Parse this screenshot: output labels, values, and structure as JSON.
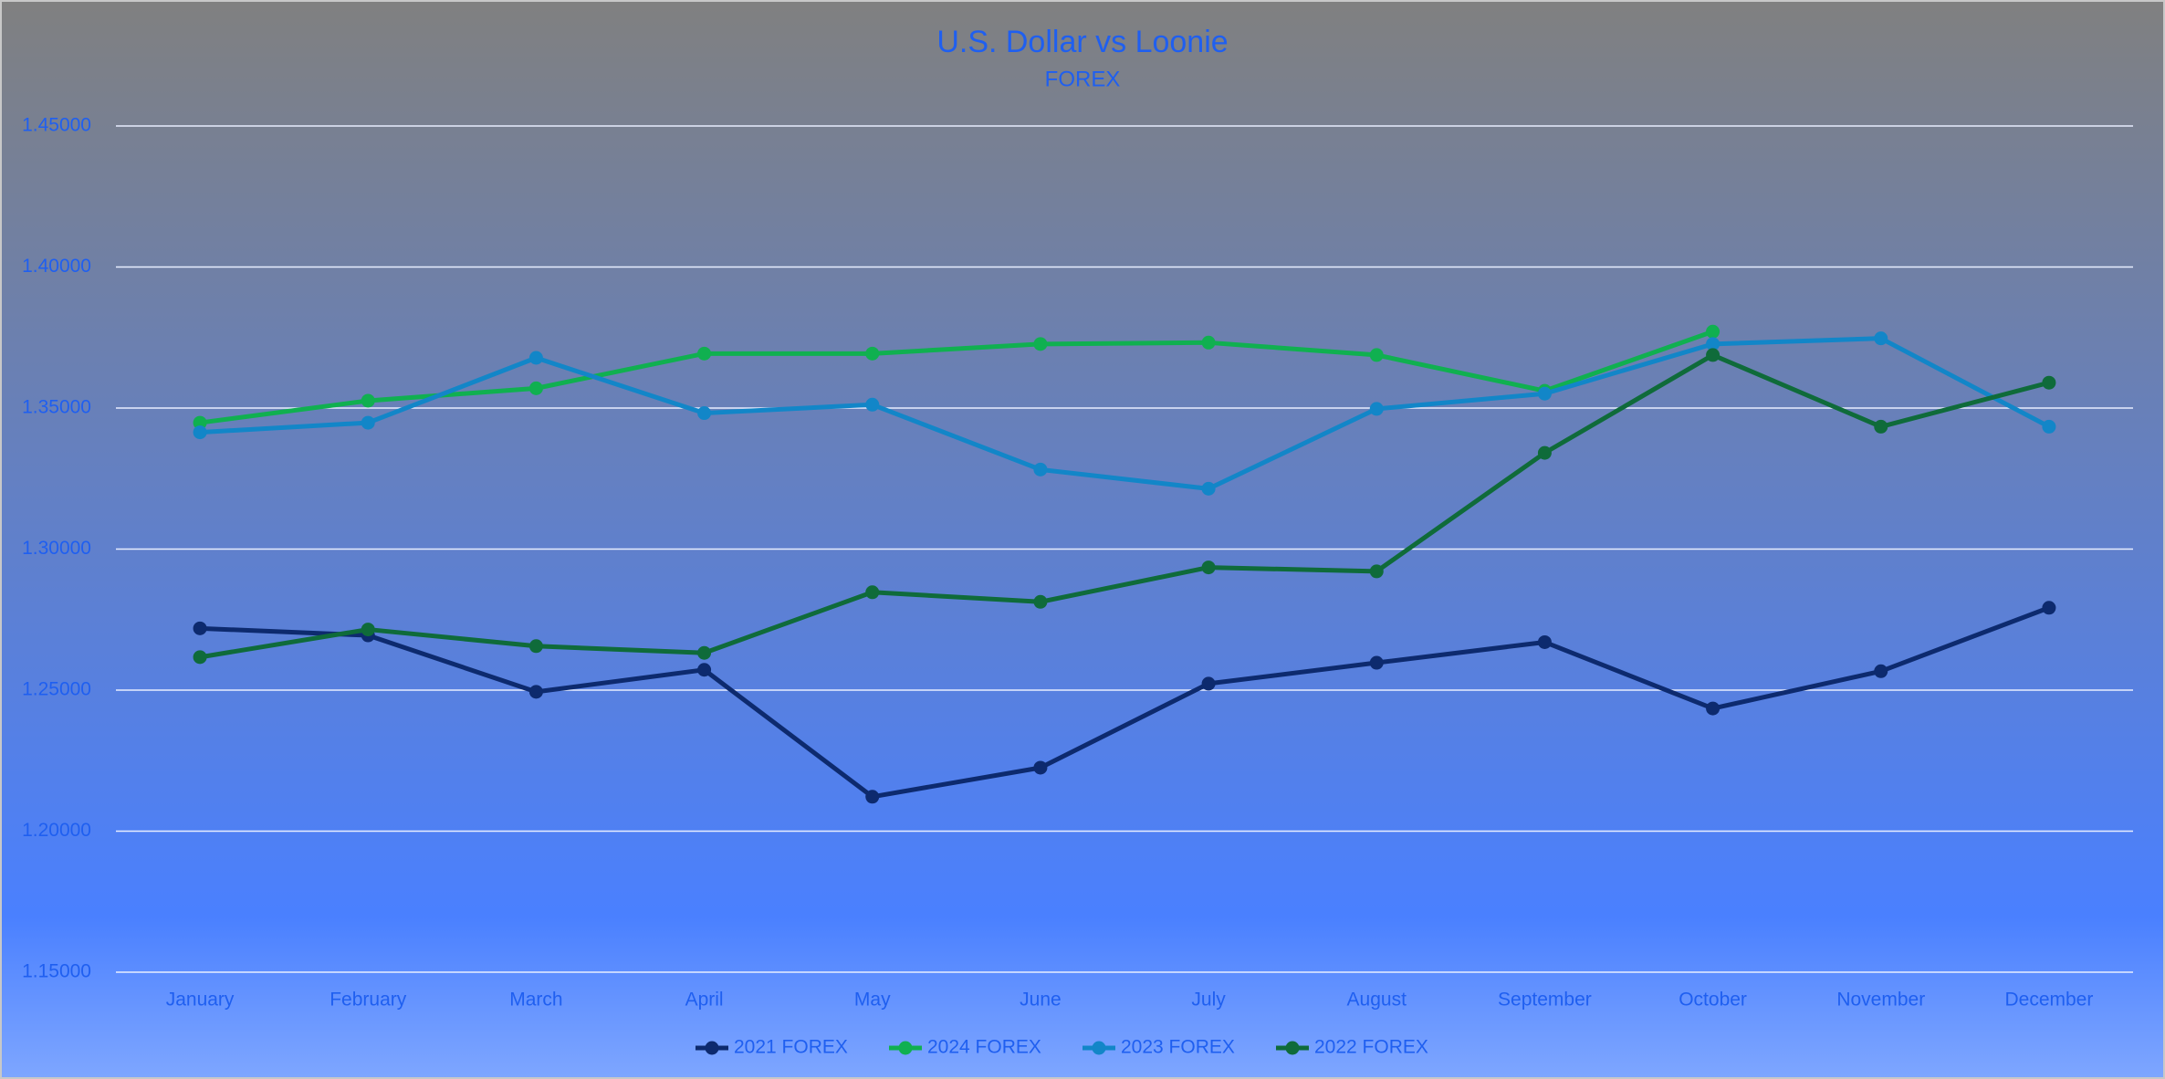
{
  "chart_data": {
    "type": "line",
    "title": "U.S. Dollar vs Loonie",
    "subtitle": "FOREX",
    "categories": [
      "January",
      "February",
      "March",
      "April",
      "May",
      "June",
      "July",
      "August",
      "September",
      "October",
      "November",
      "December"
    ],
    "series": [
      {
        "name": "2021 FOREX",
        "color": "#0d2a6e",
        "values": [
          1.2719,
          1.2694,
          1.2494,
          1.2572,
          1.2122,
          1.2225,
          1.2523,
          1.2597,
          1.267,
          1.2435,
          1.2567,
          1.2792
        ]
      },
      {
        "name": "2024 FOREX",
        "color": "#10b050",
        "values": [
          1.3448,
          1.3526,
          1.357,
          1.3693,
          1.3693,
          1.3727,
          1.3732,
          1.3688,
          1.3561,
          1.3771,
          null,
          null
        ]
      },
      {
        "name": "2023 FOREX",
        "color": "#1286c8",
        "values": [
          1.3414,
          1.3448,
          1.3678,
          1.3482,
          1.3512,
          1.3282,
          1.3214,
          1.3497,
          1.3551,
          1.3727,
          1.3747,
          1.3434
        ]
      },
      {
        "name": "2022 FOREX",
        "color": "#0f6b3a",
        "values": [
          1.2617,
          1.2715,
          1.2656,
          1.2632,
          1.2847,
          1.2813,
          1.2935,
          1.2921,
          1.3341,
          1.3688,
          1.3434,
          1.359
        ]
      }
    ],
    "ylim": [
      1.15,
      1.45
    ],
    "yticks": [
      {
        "value": 1.15,
        "label": "1.15000"
      },
      {
        "value": 1.2,
        "label": "1.20000"
      },
      {
        "value": 1.25,
        "label": "1.25000"
      },
      {
        "value": 1.3,
        "label": "1.30000"
      },
      {
        "value": 1.35,
        "label": "1.35000"
      },
      {
        "value": 1.4,
        "label": "1.40000"
      },
      {
        "value": 1.45,
        "label": "1.45000"
      }
    ],
    "grid": true,
    "legend": "bottom"
  }
}
